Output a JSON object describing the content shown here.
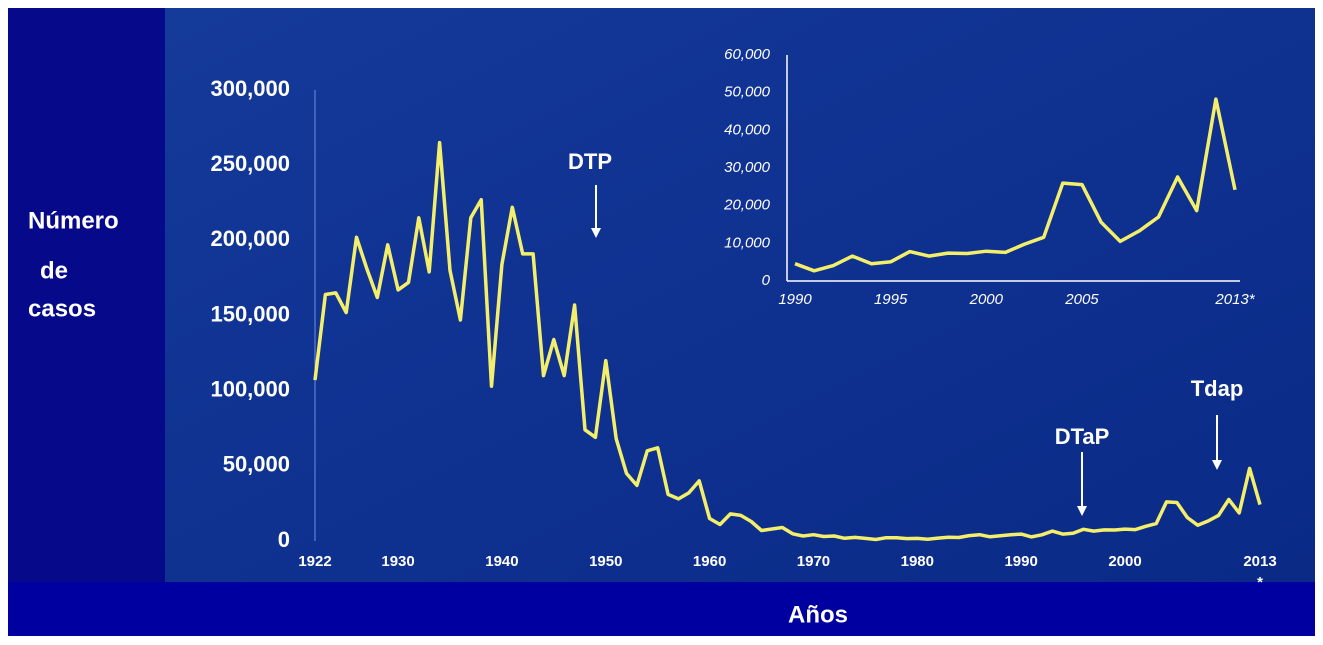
{
  "chart_data": [
    {
      "type": "line",
      "y_label": [
        "Número",
        "de",
        "casos"
      ],
      "x_label": "Años",
      "x": [
        1922,
        1923,
        1924,
        1925,
        1926,
        1927,
        1928,
        1929,
        1930,
        1931,
        1932,
        1933,
        1934,
        1935,
        1936,
        1937,
        1938,
        1939,
        1940,
        1941,
        1942,
        1943,
        1944,
        1945,
        1946,
        1947,
        1948,
        1949,
        1950,
        1951,
        1952,
        1953,
        1954,
        1955,
        1956,
        1957,
        1958,
        1959,
        1960,
        1961,
        1962,
        1963,
        1964,
        1965,
        1966,
        1967,
        1968,
        1969,
        1970,
        1971,
        1972,
        1973,
        1974,
        1975,
        1976,
        1977,
        1978,
        1979,
        1980,
        1981,
        1982,
        1983,
        1984,
        1985,
        1986,
        1987,
        1988,
        1989,
        1990,
        1991,
        1992,
        1993,
        1994,
        1995,
        1996,
        1997,
        1998,
        1999,
        2000,
        2001,
        2002,
        2003,
        2004,
        2005,
        2006,
        2007,
        2008,
        2009,
        2010,
        2011,
        2012,
        2013
      ],
      "values": [
        107000,
        164000,
        165000,
        152000,
        202000,
        181000,
        162000,
        197000,
        167000,
        172000,
        215000,
        179000,
        265000,
        180000,
        147000,
        215000,
        227000,
        103000,
        184000,
        222000,
        191000,
        191000,
        110000,
        134000,
        110000,
        157000,
        74000,
        69000,
        120000,
        68000,
        45000,
        37000,
        60000,
        62000,
        31000,
        28000,
        32000,
        40000,
        15000,
        11000,
        18000,
        17000,
        13000,
        7000,
        8000,
        9000,
        4800,
        3300,
        4200,
        3000,
        3300,
        1800,
        2400,
        1700,
        1000,
        2200,
        2100,
        1600,
        1700,
        1200,
        1900,
        2500,
        2300,
        3600,
        4200,
        2800,
        3500,
        4200,
        4600,
        2700,
        4100,
        6600,
        4600,
        5100,
        7800,
        6600,
        7400,
        7300,
        7900,
        7600,
        9800,
        11600,
        26000,
        25600,
        15600,
        10500,
        13300,
        17000,
        27600,
        18700,
        48300,
        24200
      ],
      "color": "#f4ef6a",
      "xlim": [
        1922,
        2013
      ],
      "xticks": [
        1922,
        1930,
        1940,
        1950,
        1960,
        1970,
        1980,
        1990,
        2000,
        2013
      ],
      "ylim": [
        0,
        300000
      ],
      "yticks": [
        0,
        {
          "value": 50000,
          "label": "50,000"
        },
        {
          "value": 100000,
          "label": "100,000"
        },
        {
          "value": 150000,
          "label": "150,000"
        },
        {
          "value": 200000,
          "label": "200,000"
        },
        {
          "value": 250000,
          "label": "250,000"
        },
        {
          "value": 300000,
          "label": "300,000"
        }
      ],
      "annotations": [
        "DTP",
        "DTaP",
        "Tdap",
        "*"
      ],
      "grid": false
    },
    {
      "type": "line",
      "x": [
        1990,
        1991,
        1992,
        1993,
        1994,
        1995,
        1996,
        1997,
        1998,
        1999,
        2000,
        2001,
        2002,
        2003,
        2004,
        2005,
        2006,
        2007,
        2008,
        2009,
        2010,
        2011,
        2012,
        2013
      ],
      "values": [
        4600,
        2700,
        4100,
        6600,
        4600,
        5100,
        7800,
        6600,
        7400,
        7300,
        7900,
        7600,
        9800,
        11600,
        26000,
        25600,
        15600,
        10500,
        13300,
        17000,
        27600,
        18700,
        48300,
        24200
      ],
      "color": "#f4ef6a",
      "xlim": [
        1990,
        2013
      ],
      "xticks": [
        1990,
        1995,
        2000,
        2005,
        {
          "value": 2013,
          "label": "2013*"
        }
      ],
      "ylim": [
        0,
        60000
      ],
      "yticks": [
        0,
        {
          "value": 10000,
          "label": "10,000"
        },
        {
          "value": 20000,
          "label": "20,000"
        },
        {
          "value": 30000,
          "label": "30,000"
        },
        {
          "value": 40000,
          "label": "40,000"
        },
        {
          "value": 50000,
          "label": "50,000"
        },
        {
          "value": 60000,
          "label": "60,000"
        }
      ],
      "grid": false
    }
  ]
}
